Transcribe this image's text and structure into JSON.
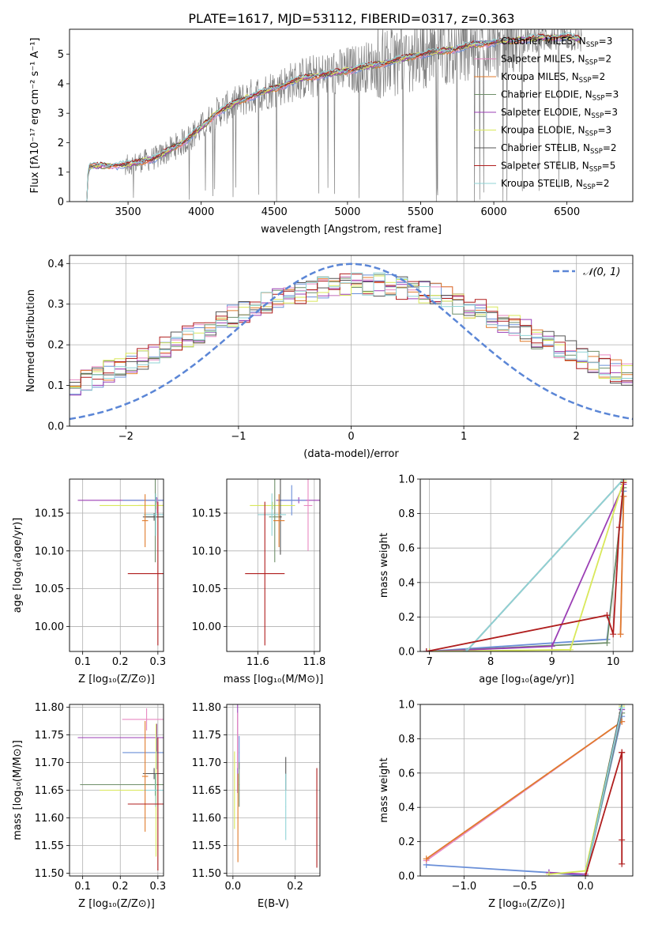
{
  "figure": {
    "title": "PLATE=1617, MJD=53112, FIBERID=0317, z=0.363"
  },
  "series_styles": [
    {
      "name": "Chabrier MILES",
      "sub": "SSP",
      "suffix": "=3",
      "color": "#6a8fd8"
    },
    {
      "name": "Salpeter MILES",
      "sub": "SSP",
      "suffix": "=2",
      "color": "#e889c2"
    },
    {
      "name": "Kroupa MILES",
      "sub": "SSP",
      "suffix": "=2",
      "color": "#e07b2c"
    },
    {
      "name": "Chabrier ELODIE",
      "sub": "SSP",
      "suffix": "=3",
      "color": "#6f8f6a"
    },
    {
      "name": "Salpeter ELODIE",
      "sub": "SSP",
      "suffix": "=3",
      "color": "#9b3fb5"
    },
    {
      "name": "Kroupa ELODIE",
      "sub": "SSP",
      "suffix": "=3",
      "color": "#d9e85a"
    },
    {
      "name": "Chabrier STELIB",
      "sub": "SSP",
      "suffix": "=2",
      "color": "#555555"
    },
    {
      "name": "Salpeter STELIB",
      "sub": "SSP",
      "suffix": "=5",
      "color": "#b01e1e"
    },
    {
      "name": "Kroupa STELIB",
      "sub": "SSP",
      "suffix": "=2",
      "color": "#8fd3d6"
    }
  ],
  "chart_data": [
    {
      "id": "spectrum",
      "type": "line",
      "xlabel": "wavelength [Angstrom, rest frame]",
      "ylabel": "Flux [fλ10⁻¹⁷ erg cm⁻² s⁻¹ A⁻¹]",
      "xlim": [
        3100,
        6950
      ],
      "ylim": [
        0,
        5.85
      ],
      "xticks": [
        3500,
        4000,
        4500,
        5000,
        5500,
        6000,
        6500
      ],
      "yticks": [
        0,
        1,
        2,
        3,
        4,
        5
      ],
      "legend_position": "top-right",
      "data_color": "#808080",
      "model_envelope": {
        "x": [
          3210,
          3230,
          3240,
          3500,
          3700,
          3900,
          4000,
          4100,
          4300,
          4500,
          4700,
          4900,
          5100,
          5300,
          5500,
          5700,
          5900,
          6100,
          6300,
          6500,
          6600
        ],
        "y": [
          0,
          1.1,
          1.2,
          1.25,
          1.5,
          2.1,
          2.5,
          3.0,
          3.5,
          3.85,
          4.2,
          4.35,
          4.55,
          4.75,
          5.0,
          5.15,
          5.35,
          5.45,
          5.55,
          5.6,
          5.5
        ]
      }
    },
    {
      "id": "residuals",
      "type": "step-histogram",
      "xlabel": "(data-model)/error",
      "ylabel": "Normed distribution",
      "xlim": [
        -2.5,
        2.5
      ],
      "ylim": [
        0,
        0.42
      ],
      "xticks": [
        -2,
        -1,
        0,
        1,
        2
      ],
      "yticks": [
        0.0,
        0.1,
        0.2,
        0.3,
        0.4
      ],
      "grid": true,
      "legend_position": "top-right",
      "reference_curve": {
        "label": "𝒩(0, 1)",
        "mean": 0,
        "sigma": 1,
        "color": "#5b86d6",
        "style": "dashed"
      },
      "bin_width": 0.1
    },
    {
      "id": "age-vs-Z",
      "type": "errorbar",
      "xlabel": "Z [log₁₀(Z/Z⊙)]",
      "ylabel": "age  [log₁₀(age/yr)]",
      "xlim": [
        0.065,
        0.315
      ],
      "ylim": [
        9.967,
        10.195
      ],
      "xticks": [
        0.1,
        0.2,
        0.3
      ],
      "yticks": [
        10.0,
        10.05,
        10.1,
        10.15
      ],
      "grid": true,
      "points": [
        {
          "x": 0.297,
          "y": 10.167,
          "xerr": 0.21,
          "yerr": 0.004,
          "c": 4
        },
        {
          "x": 0.296,
          "y": 10.167,
          "xerr": 0.09,
          "yerr": 0.004,
          "c": 0
        },
        {
          "x": 0.298,
          "y": 10.16,
          "xerr": 0.05,
          "yerr": 0.01,
          "c": 1
        },
        {
          "x": 0.295,
          "y": 10.16,
          "xerr": 0.15,
          "yerr": 0.005,
          "c": 5
        },
        {
          "x": 0.293,
          "y": 10.145,
          "xerr": 0.025,
          "yerr": 0.06,
          "c": 3
        },
        {
          "x": 0.29,
          "y": 10.145,
          "xerr": 0.03,
          "yerr": 0.005,
          "c": 6
        },
        {
          "x": 0.294,
          "y": 10.148,
          "xerr": 0.032,
          "yerr": 0.028,
          "c": 8
        },
        {
          "x": 0.266,
          "y": 10.14,
          "xerr": 0.008,
          "yerr": 0.035,
          "c": 2
        },
        {
          "x": 0.3,
          "y": 10.07,
          "xerr": 0.08,
          "yerr": 0.095,
          "c": 7
        }
      ]
    },
    {
      "id": "age-vs-mass",
      "type": "errorbar",
      "xlabel": "mass [log₁₀(M/M⊙)]",
      "ylabel": "",
      "xlim": [
        11.49,
        11.82
      ],
      "ylim": [
        9.967,
        10.195
      ],
      "xticks": [
        11.6,
        11.8
      ],
      "yticks": [
        10.0,
        10.05,
        10.1,
        10.15
      ],
      "grid": true,
      "points": [
        {
          "x": 11.745,
          "y": 10.167,
          "xerr": 0.08,
          "yerr": 0.004,
          "c": 4
        },
        {
          "x": 11.72,
          "y": 10.167,
          "xerr": 0.05,
          "yerr": 0.02,
          "c": 0
        },
        {
          "x": 11.778,
          "y": 10.16,
          "xerr": 0.015,
          "yerr": 0.06,
          "c": 1
        },
        {
          "x": 11.652,
          "y": 10.16,
          "xerr": 0.08,
          "yerr": 0.005,
          "c": 5
        },
        {
          "x": 11.66,
          "y": 10.145,
          "xerr": 0.02,
          "yerr": 0.06,
          "c": 3
        },
        {
          "x": 11.68,
          "y": 10.145,
          "xerr": 0.005,
          "yerr": 0.05,
          "c": 6
        },
        {
          "x": 11.65,
          "y": 10.148,
          "xerr": 0.05,
          "yerr": 0.028,
          "c": 8
        },
        {
          "x": 11.675,
          "y": 10.14,
          "xerr": 0.02,
          "yerr": 0.035,
          "c": 2
        },
        {
          "x": 11.625,
          "y": 10.07,
          "xerr": 0.07,
          "yerr": 0.095,
          "c": 7
        }
      ]
    },
    {
      "id": "weight-vs-age",
      "type": "line",
      "xlabel": "age  [log₁₀(age/yr)]",
      "ylabel": "mass weight",
      "xlim": [
        6.85,
        10.32
      ],
      "ylim": [
        0,
        1.0
      ],
      "xticks": [
        7,
        8,
        9,
        10
      ],
      "yticks": [
        0.0,
        0.2,
        0.4,
        0.6,
        0.8,
        1.0
      ],
      "grid": true,
      "series": [
        {
          "c": 0,
          "x": [
            6.95,
            9.9,
            10.17
          ],
          "y": [
            0.0,
            0.07,
            0.93
          ]
        },
        {
          "c": 1,
          "x": [
            10.12,
            10.17
          ],
          "y": [
            0.1,
            0.9
          ]
        },
        {
          "c": 2,
          "x": [
            10.12,
            10.17
          ],
          "y": [
            0.1,
            0.9
          ]
        },
        {
          "c": 3,
          "x": [
            7.0,
            9.9,
            10.17
          ],
          "y": [
            0.0,
            0.05,
            0.95
          ]
        },
        {
          "c": 4,
          "x": [
            7.0,
            9.0,
            10.17
          ],
          "y": [
            0.0,
            0.03,
            0.97
          ]
        },
        {
          "c": 5,
          "x": [
            7.0,
            9.3,
            10.17
          ],
          "y": [
            0.0,
            0.01,
            0.99
          ]
        },
        {
          "c": 6,
          "x": [
            7.6,
            10.17
          ],
          "y": [
            0.0,
            1.0
          ]
        },
        {
          "c": 8,
          "x": [
            7.6,
            10.17
          ],
          "y": [
            0.0,
            1.0
          ]
        },
        {
          "c": 7,
          "x": [
            6.95,
            9.9,
            10.0,
            10.1,
            10.17
          ],
          "y": [
            0.0,
            0.21,
            0.1,
            0.72,
            0.98
          ]
        }
      ]
    },
    {
      "id": "mass-vs-Z",
      "type": "errorbar",
      "xlabel": "Z [log₁₀(Z/Z⊙)]",
      "ylabel": "mass [log₁₀(M/M⊙)]",
      "xlim": [
        0.065,
        0.315
      ],
      "ylim": [
        11.495,
        11.805
      ],
      "xticks": [
        0.1,
        0.2,
        0.3
      ],
      "yticks": [
        11.5,
        11.55,
        11.6,
        11.65,
        11.7,
        11.75,
        11.8
      ],
      "grid": true,
      "points": [
        {
          "x": 0.297,
          "y": 11.745,
          "xerr": 0.21,
          "yerr": 0.025,
          "c": 4
        },
        {
          "x": 0.296,
          "y": 11.718,
          "xerr": 0.09,
          "yerr": 0.03,
          "c": 0
        },
        {
          "x": 0.27,
          "y": 11.778,
          "xerr": 0.065,
          "yerr": 0.02,
          "c": 1
        },
        {
          "x": 0.295,
          "y": 11.65,
          "xerr": 0.15,
          "yerr": 0.12,
          "c": 5
        },
        {
          "x": 0.293,
          "y": 11.66,
          "xerr": 0.2,
          "yerr": 0.02,
          "c": 3
        },
        {
          "x": 0.29,
          "y": 11.68,
          "xerr": 0.03,
          "yerr": 0.01,
          "c": 6
        },
        {
          "x": 0.294,
          "y": 11.65,
          "xerr": 0.032,
          "yerr": 0.03,
          "c": 8
        },
        {
          "x": 0.266,
          "y": 11.675,
          "xerr": 0.008,
          "yerr": 0.1,
          "c": 2
        },
        {
          "x": 0.3,
          "y": 11.625,
          "xerr": 0.08,
          "yerr": 0.12,
          "c": 7
        }
      ]
    },
    {
      "id": "mass-vs-ebv",
      "type": "errorbar",
      "xlabel": "E(B-V)",
      "ylabel": "",
      "xlim": [
        -0.02,
        0.28
      ],
      "ylim": [
        11.495,
        11.805
      ],
      "xticks": [
        0.0,
        0.2
      ],
      "yticks": [
        11.5,
        11.55,
        11.6,
        11.65,
        11.7,
        11.75,
        11.8
      ],
      "grid": true,
      "points": [
        {
          "x": 0.015,
          "y": 11.745,
          "xerr": 0.001,
          "yerr": 0.1,
          "c": 4
        },
        {
          "x": 0.02,
          "y": 11.718,
          "xerr": 0.001,
          "yerr": 0.03,
          "c": 0
        },
        {
          "x": 0.015,
          "y": 11.74,
          "xerr": 0.001,
          "yerr": 0.05,
          "c": 1
        },
        {
          "x": 0.005,
          "y": 11.65,
          "xerr": 0.001,
          "yerr": 0.07,
          "c": 5
        },
        {
          "x": 0.02,
          "y": 11.66,
          "xerr": 0.001,
          "yerr": 0.04,
          "c": 3
        },
        {
          "x": 0.17,
          "y": 11.68,
          "xerr": 0.001,
          "yerr": 0.03,
          "c": 6
        },
        {
          "x": 0.17,
          "y": 11.62,
          "xerr": 0.001,
          "yerr": 0.06,
          "c": 8
        },
        {
          "x": 0.016,
          "y": 11.6,
          "xerr": 0.001,
          "yerr": 0.08,
          "c": 2
        },
        {
          "x": 0.27,
          "y": 11.6,
          "xerr": 0.001,
          "yerr": 0.09,
          "c": 7
        }
      ]
    },
    {
      "id": "weight-vs-Z",
      "type": "line",
      "xlabel": "Z [log₁₀(Z/Z⊙)]",
      "ylabel": "mass weight",
      "xlim": [
        -1.36,
        0.39
      ],
      "ylim": [
        0,
        1.0
      ],
      "xticks": [
        -1.0,
        -0.5,
        0.0
      ],
      "yticks": [
        0.0,
        0.2,
        0.4,
        0.6,
        0.8,
        1.0
      ],
      "grid": true,
      "series": [
        {
          "c": 0,
          "x": [
            -1.31,
            -0.3,
            0.0,
            0.3
          ],
          "y": [
            0.065,
            0.02,
            0.0,
            0.93
          ]
        },
        {
          "c": 1,
          "x": [
            -1.31,
            0.3
          ],
          "y": [
            0.09,
            0.9
          ]
        },
        {
          "c": 2,
          "x": [
            -1.31,
            0.3
          ],
          "y": [
            0.1,
            0.9
          ]
        },
        {
          "c": 3,
          "x": [
            0.0,
            0.3
          ],
          "y": [
            0.0,
            0.95
          ]
        },
        {
          "c": 4,
          "x": [
            -0.3,
            0.0,
            0.3
          ],
          "y": [
            0.02,
            0.01,
            0.97
          ]
        },
        {
          "c": 5,
          "x": [
            -0.3,
            0.0,
            0.3
          ],
          "y": [
            0.01,
            0.03,
            0.99
          ]
        },
        {
          "c": 6,
          "x": [
            0.0,
            0.3
          ],
          "y": [
            0.0,
            1.0
          ]
        },
        {
          "c": 8,
          "x": [
            0.0,
            0.3
          ],
          "y": [
            0.0,
            0.98
          ]
        },
        {
          "c": 7,
          "x": [
            0.0,
            0.3,
            0.3,
            0.3,
            0.3
          ],
          "y": [
            0.0,
            0.72,
            0.21,
            0.07,
            0.72
          ]
        }
      ]
    }
  ]
}
